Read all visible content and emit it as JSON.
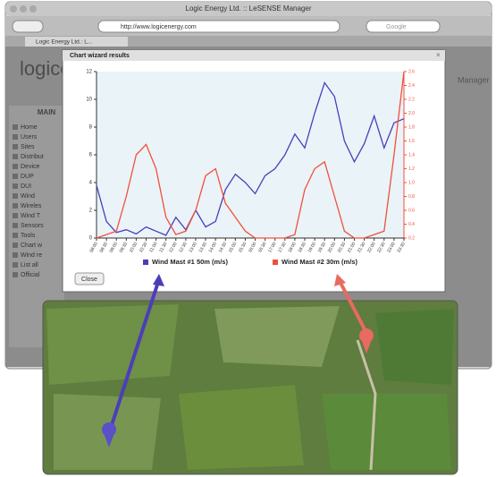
{
  "browser": {
    "window_title": "Logic Energy Ltd. :: LeSENSE Manager",
    "url": "http://www.logicenergy.com",
    "search": "Google",
    "tab": "Logic Energy Ltd.: L..."
  },
  "page": {
    "logo": "logice",
    "menu_title": "MAIN",
    "menu": [
      "Home",
      "Users",
      "Sites",
      "Distribut",
      "Device",
      "DUP",
      "DUI",
      "Wind",
      "Wireles",
      "Wind T",
      "Sensors",
      "Tools",
      "Chart w",
      "Wind re",
      "List all",
      "Official"
    ],
    "header_right": "Manager"
  },
  "dialog": {
    "title": "Chart wizard results",
    "close_button": "Close"
  },
  "chart_data": {
    "type": "line",
    "categories": [
      "08:00",
      "08:30",
      "09:00",
      "09:30",
      "10:00",
      "10:30",
      "11:00",
      "11:30",
      "12:00",
      "12:30",
      "13:00",
      "13:30",
      "14:00",
      "14:30",
      "15:00",
      "15:30",
      "16:00",
      "16:30",
      "17:00",
      "17:30",
      "18:00",
      "18:30",
      "19:00",
      "19:30",
      "20:00",
      "20:30",
      "21:00",
      "21:30",
      "22:00",
      "22:30",
      "23:00",
      "23:30"
    ],
    "series": [
      {
        "name": "Wind Mast #1 50m (m/s)",
        "color": "#4b3fb8",
        "values": [
          3.8,
          1.2,
          0.4,
          0.6,
          0.3,
          0.8,
          0.5,
          0.2,
          1.5,
          0.6,
          2.0,
          0.8,
          1.2,
          3.5,
          4.6,
          4.0,
          3.2,
          4.5,
          5.0,
          6.0,
          7.5,
          6.5,
          9.0,
          11.2,
          10.2,
          7.0,
          5.5,
          6.8,
          8.8,
          6.5,
          8.3,
          8.6
        ]
      },
      {
        "name": "Wind Mast #2 30m (m/s)",
        "color": "#f0503c",
        "axis": "y2",
        "values": [
          0.2,
          0.25,
          0.3,
          0.8,
          1.4,
          1.55,
          1.2,
          0.5,
          0.25,
          0.3,
          0.6,
          1.1,
          1.2,
          0.7,
          0.5,
          0.3,
          0.2,
          0.2,
          0.2,
          0.2,
          0.25,
          0.9,
          1.2,
          1.3,
          0.8,
          0.3,
          0.2,
          0.2,
          0.25,
          0.3,
          1.4,
          2.6
        ]
      }
    ],
    "ylim": [
      0,
      12
    ],
    "yticks": [
      0,
      2,
      4,
      6,
      8,
      10,
      12
    ],
    "y2lim": [
      0.2,
      2.6
    ],
    "y2ticks": [
      0.2,
      0.4,
      0.6,
      0.8,
      {
        "value": 1,
        "label": "1.0"
      },
      1.2,
      1.4,
      1.6,
      1.8,
      {
        "value": 2,
        "label": "2.0"
      },
      2.2,
      2.4,
      2.6
    ],
    "grid": false,
    "legend": "bottom"
  }
}
